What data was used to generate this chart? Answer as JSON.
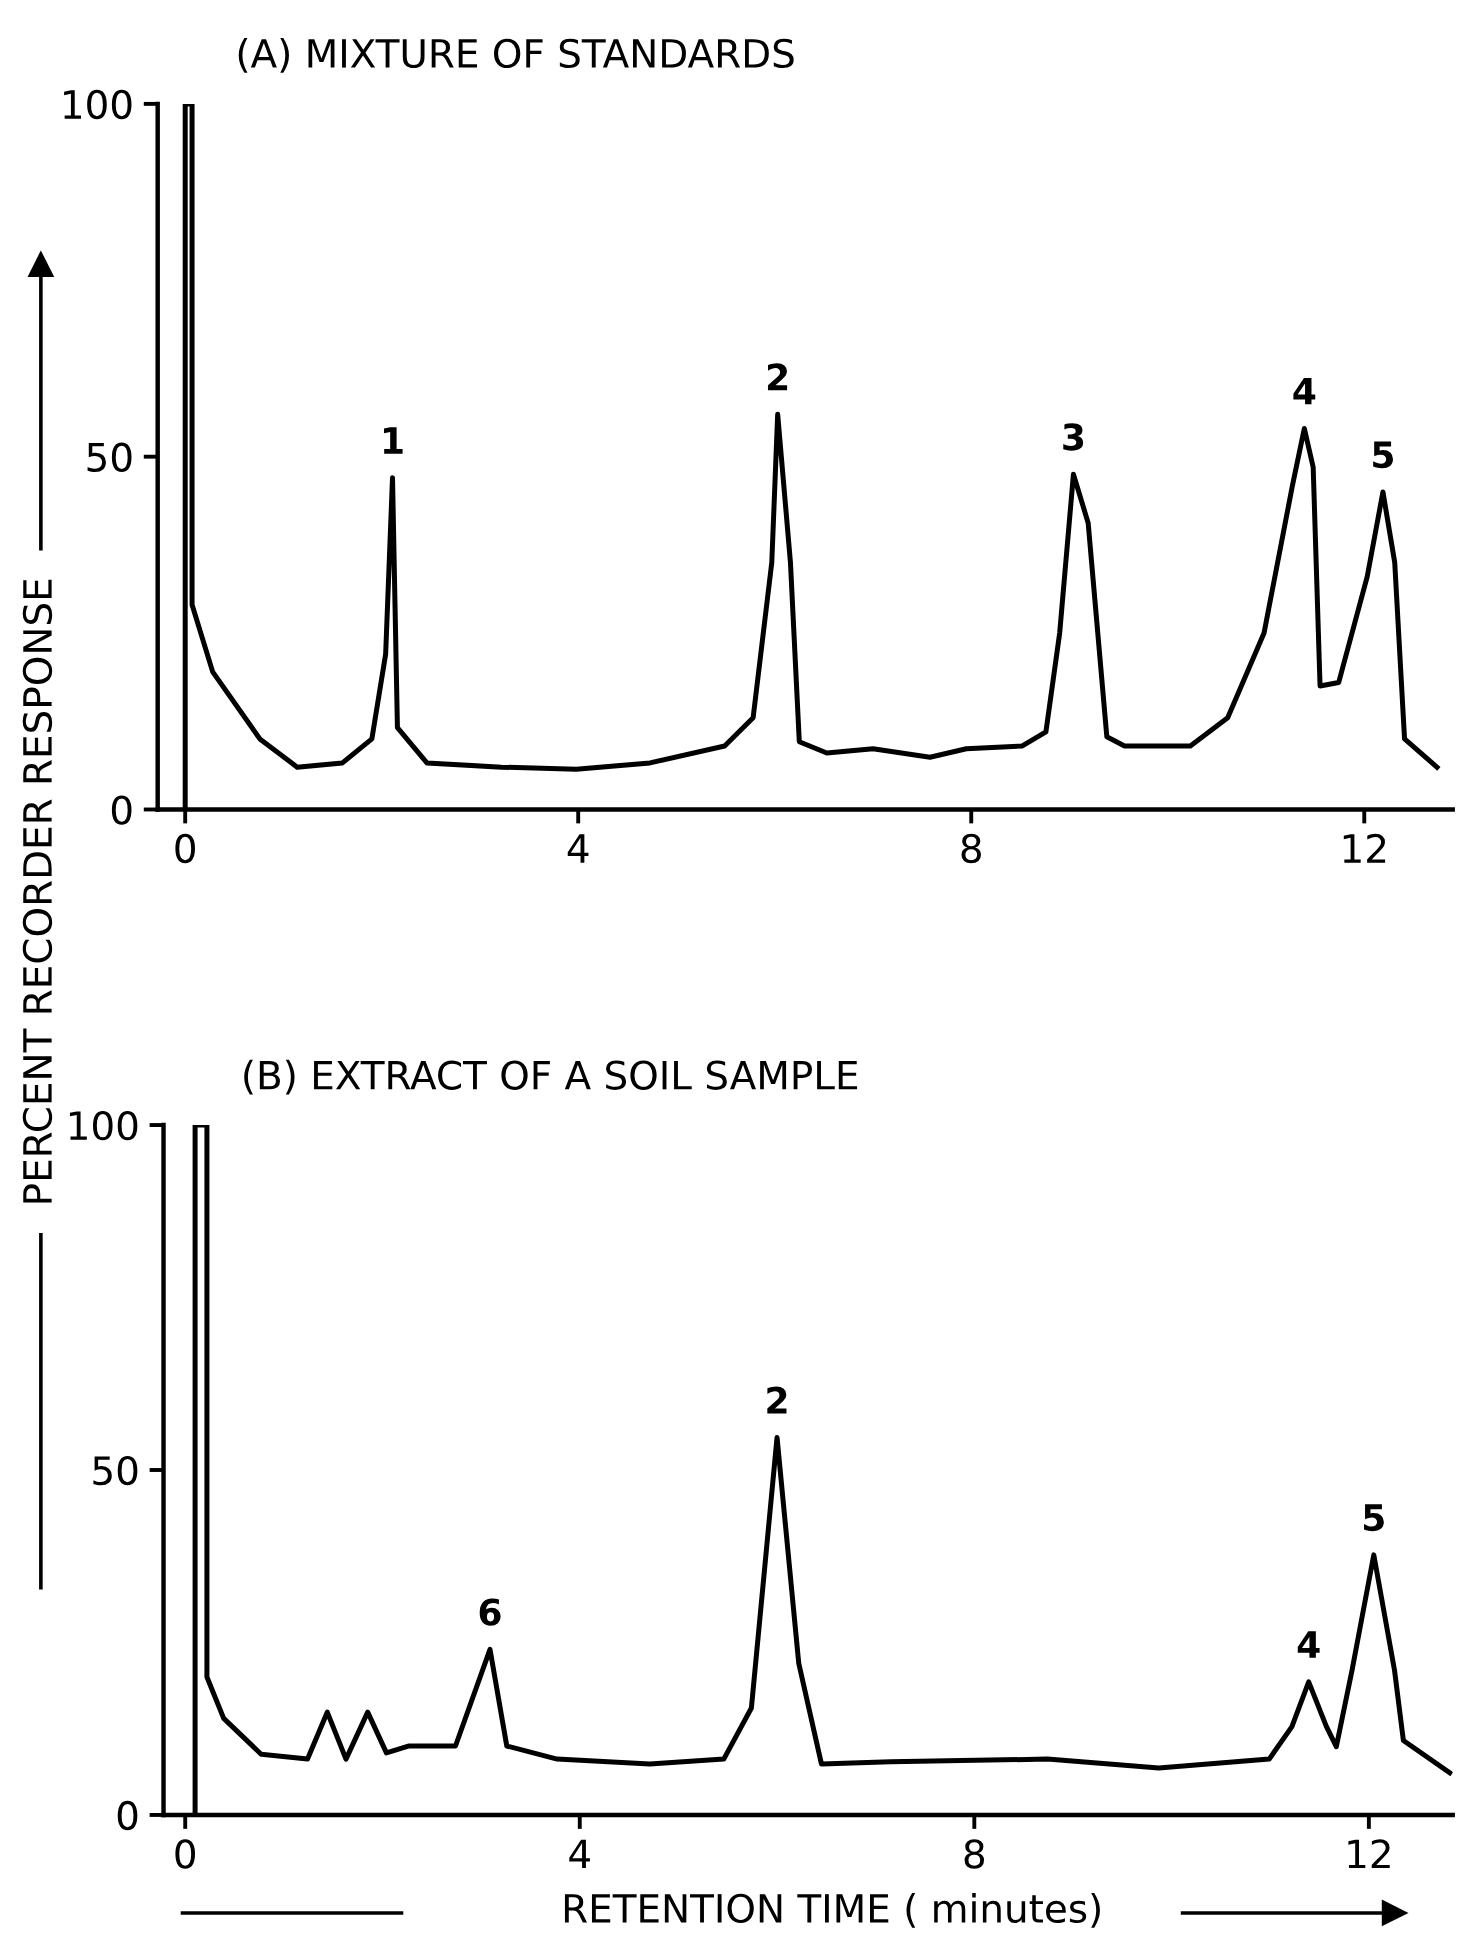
{
  "chart_data": [
    {
      "type": "line",
      "title": "(A) MIXTURE OF STANDARDS",
      "ylabel": "PERCENT RECORDER RESPONSE",
      "xlim": [
        -0.28,
        12.9
      ],
      "ylim": [
        0,
        100
      ],
      "xticks": [
        0,
        4,
        8,
        12
      ],
      "yticks": [
        0,
        50,
        100
      ],
      "grid": false,
      "legend": false,
      "marker": "none",
      "line_style": "solid",
      "series": [
        {
          "color": "#000000",
          "x": [
            0,
            0,
            0.07,
            0.07,
            0.28,
            0.76,
            1.14,
            1.6,
            1.9,
            2.04,
            2.11,
            2.16,
            2.46,
            3.22,
            3.98,
            4.73,
            5.49,
            5.78,
            5.97,
            6.03,
            6.16,
            6.25,
            6.53,
            7.0,
            7.58,
            7.95,
            8.52,
            8.76,
            8.9,
            9.04,
            9.19,
            9.38,
            9.56,
            10.23,
            10.61,
            10.98,
            11.27,
            11.39,
            11.48,
            11.55,
            11.74,
            12.03,
            12.19,
            12.31,
            12.41,
            12.74
          ],
          "values": [
            0,
            100,
            100,
            29,
            19.5,
            10,
            6,
            6.6,
            10,
            22,
            47,
            11.6,
            6.6,
            6,
            5.7,
            6.6,
            9,
            13,
            35,
            56,
            35,
            9.6,
            8,
            8.6,
            7.4,
            8.6,
            9,
            11,
            25,
            47.5,
            40.6,
            10.3,
            9,
            9,
            13,
            25,
            46,
            54,
            48.5,
            17.5,
            18,
            33,
            45,
            35,
            10,
            6
          ]
        }
      ],
      "annotations": [
        {
          "text": "1",
          "x": 2.11,
          "y": 47
        },
        {
          "text": "2",
          "x": 6.03,
          "y": 56
        },
        {
          "text": "3",
          "x": 9.04,
          "y": 47.5
        },
        {
          "text": "4",
          "x": 11.39,
          "y": 54
        },
        {
          "text": "5",
          "x": 12.19,
          "y": 45
        }
      ]
    },
    {
      "type": "line",
      "title": "(B) EXTRACT OF A SOIL SAMPLE",
      "xlabel": "RETENTION TIME ( minutes)",
      "xlim": [
        -0.22,
        12.85
      ],
      "ylim": [
        0,
        100
      ],
      "xticks": [
        0,
        4,
        8,
        12
      ],
      "yticks": [
        0,
        50,
        100
      ],
      "grid": false,
      "legend": false,
      "marker": "none",
      "line_style": "solid",
      "series": [
        {
          "color": "#000000",
          "x": [
            0.1,
            0.1,
            0.22,
            0.22,
            0.39,
            0.77,
            1.24,
            1.44,
            1.63,
            1.85,
            2.04,
            2.27,
            2.74,
            3.09,
            3.26,
            3.77,
            4.71,
            5.46,
            5.74,
            6.0,
            6.22,
            6.45,
            7.15,
            8.74,
            9.87,
            10.99,
            11.22,
            11.39,
            11.57,
            11.67,
            11.83,
            12.05,
            12.26,
            12.35,
            12.82
          ],
          "values": [
            0,
            100,
            100,
            20,
            14,
            8.8,
            8.1,
            14.9,
            8.1,
            14.9,
            9,
            10,
            10,
            24,
            10,
            8.1,
            7.4,
            8.1,
            15.5,
            54.7,
            22,
            7.4,
            7.7,
            8.1,
            6.8,
            8.1,
            12.8,
            19.3,
            12.8,
            9.9,
            21,
            37.7,
            21,
            10.8,
            6.1
          ]
        }
      ],
      "annotations": [
        {
          "text": "6",
          "x": 3.09,
          "y": 24
        },
        {
          "text": "2",
          "x": 6.0,
          "y": 54.7
        },
        {
          "text": "4",
          "x": 11.39,
          "y": 19.3
        },
        {
          "text": "5",
          "x": 12.05,
          "y": 37.7
        }
      ]
    }
  ]
}
